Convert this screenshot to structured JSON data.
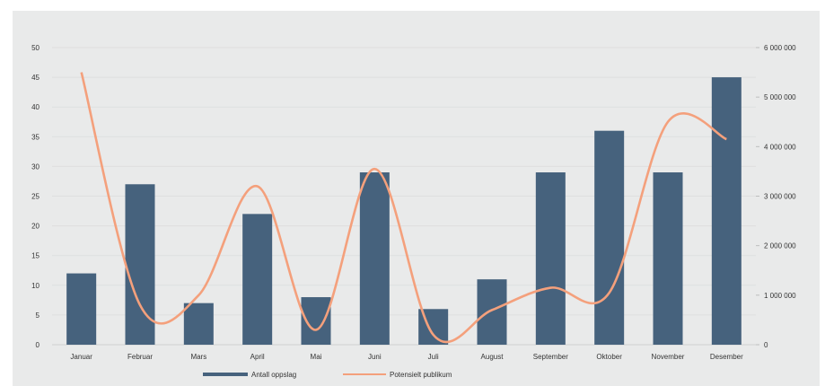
{
  "chart_data": {
    "type": "bar",
    "categories": [
      "Januar",
      "Februar",
      "Mars",
      "April",
      "Mai",
      "Juni",
      "Juli",
      "August",
      "September",
      "Oktober",
      "November",
      "Desember"
    ],
    "series": [
      {
        "name": "Antall oppslag",
        "type": "bar",
        "axis": "left",
        "color": "#46627d",
        "values": [
          12,
          27,
          7,
          22,
          8,
          29,
          6,
          11,
          29,
          36,
          29,
          45
        ]
      },
      {
        "name": "Potensielt publikum",
        "type": "line",
        "axis": "right",
        "color": "#f4a07c",
        "values": [
          5500000,
          800000,
          1000000,
          3200000,
          300000,
          3550000,
          200000,
          700000,
          1150000,
          1050000,
          4500000,
          4150000
        ]
      }
    ],
    "ylim_left": [
      0,
      50
    ],
    "yticks_left": [
      "0",
      "5",
      "10",
      "15",
      "20",
      "25",
      "30",
      "35",
      "40",
      "45",
      "50"
    ],
    "ylim_right": [
      0,
      6000000
    ],
    "yticks_right": [
      "0",
      "1 000 000",
      "2 000 000",
      "3 000 000",
      "4 000 000",
      "5 000 000",
      "6 000 000"
    ],
    "grid": true,
    "legend_position": "bottom"
  }
}
